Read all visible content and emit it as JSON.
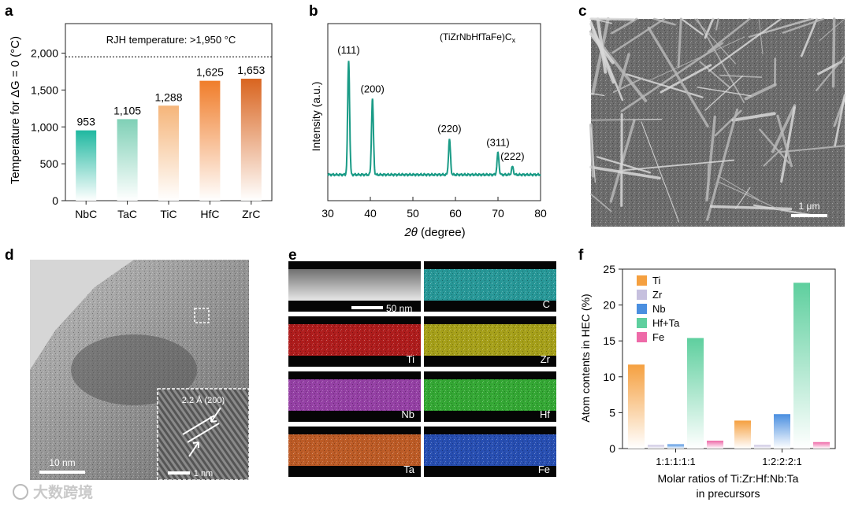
{
  "panel_letters": [
    "a",
    "b",
    "c",
    "d",
    "e",
    "f"
  ],
  "chart_data": [
    {
      "panel": "a",
      "type": "bar",
      "categories": [
        "NbC",
        "TaC",
        "TiC",
        "HfC",
        "ZrC"
      ],
      "values": [
        953,
        1105,
        1288,
        1625,
        1653
      ],
      "value_labels": [
        "953",
        "1,105",
        "1,288",
        "1,625",
        "1,653"
      ],
      "ylabel": "Temperature for ΔG = 0 (°C)",
      "ylim": [
        0,
        2400
      ],
      "yticks": [
        0,
        500,
        1000,
        1500,
        2000
      ],
      "ytick_labels": [
        "0",
        "500",
        "1,000",
        "1,500",
        "2,000"
      ],
      "reference_line": {
        "value": 1950,
        "label": "RJH temperature: >1,950 °C",
        "style": "dotted"
      },
      "colors": [
        "#1fb8a0",
        "#7fd0b6",
        "#f5b57a",
        "#f07d2a",
        "#d9641f"
      ]
    },
    {
      "panel": "b",
      "type": "line",
      "xlabel_italic": "2θ",
      "xlabel_rest": " (degree)",
      "ylabel": "Intensity (a.u.)",
      "xlim": [
        30,
        80
      ],
      "xticks": [
        30,
        40,
        50,
        60,
        70,
        80
      ],
      "annotation_base": "(TiZrNbHfTaFe)C",
      "annotation_sub": "x",
      "color": "#1a9b86",
      "peaks": [
        {
          "x": 34.9,
          "height": 1.0,
          "label": "(111)"
        },
        {
          "x": 40.5,
          "height": 0.66,
          "label": "(200)"
        },
        {
          "x": 58.6,
          "height": 0.31,
          "label": "(220)"
        },
        {
          "x": 70.0,
          "height": 0.19,
          "label": "(311)"
        },
        {
          "x": 73.4,
          "height": 0.07,
          "label": "(222)"
        }
      ]
    },
    {
      "panel": "f",
      "type": "bar",
      "categories": [
        "1:1:1:1:1",
        "1:2:2:2:1"
      ],
      "series": [
        {
          "name": "Ti",
          "values": [
            11.7,
            3.9
          ],
          "color": "#f5a040"
        },
        {
          "name": "Zr",
          "values": [
            0.5,
            0.5
          ],
          "color": "#c6c0de"
        },
        {
          "name": "Nb",
          "values": [
            0.6,
            4.8
          ],
          "color": "#4a8fe0"
        },
        {
          "name": "Hf+Ta",
          "values": [
            15.4,
            23.1
          ],
          "color": "#5ecf9e"
        },
        {
          "name": "Fe",
          "values": [
            1.1,
            0.9
          ],
          "color": "#ee6aa8"
        }
      ],
      "ylabel": "Atom contents in HEC (%)",
      "xlabel_line1": "Molar ratios of Ti:Zr:Hf:Nb:Ta",
      "xlabel_line2": "in precursors",
      "ylim": [
        0,
        25
      ],
      "yticks": [
        0,
        5,
        10,
        15,
        20,
        25
      ],
      "legend_position": "top-left"
    }
  ],
  "micrographs": {
    "c": {
      "scale_bar": "1 μm"
    },
    "d": {
      "scale_bar": "10 nm",
      "inset_label": "2.2 Å (200)",
      "inset_scale_bar": "1 nm"
    },
    "e": {
      "scale_bar": "50 nm",
      "tiles": [
        {
          "label": "",
          "color": "#9a9a9a"
        },
        {
          "label": "C",
          "color": "#2fb8b8"
        },
        {
          "label": "Ti",
          "color": "#d42222"
        },
        {
          "label": "Zr",
          "color": "#c9c21e"
        },
        {
          "label": "Nb",
          "color": "#b44ec8"
        },
        {
          "label": "Hf",
          "color": "#3fcc3f"
        },
        {
          "label": "Ta",
          "color": "#e56f2e"
        },
        {
          "label": "Fe",
          "color": "#2f5fd8"
        }
      ]
    }
  },
  "watermark": "大数跨境"
}
